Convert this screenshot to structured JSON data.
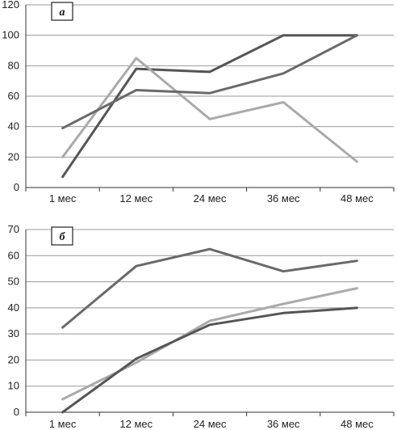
{
  "chart_data": [
    {
      "type": "line",
      "label": "а",
      "categories": [
        "1 мес",
        "12 мес",
        "24 мес",
        "36 мес",
        "48 мес"
      ],
      "ylim": [
        0,
        120
      ],
      "yticks": [
        0,
        20,
        40,
        60,
        80,
        100,
        120
      ],
      "grid": true,
      "series": [
        {
          "color": "#555555",
          "values": [
            7,
            78,
            76,
            100,
            100
          ]
        },
        {
          "color": "#aaaaaa",
          "values": [
            20,
            85,
            45,
            56,
            17
          ]
        },
        {
          "color": "#6a6a6a",
          "values": [
            39,
            64,
            62,
            75,
            100
          ]
        }
      ]
    },
    {
      "type": "line",
      "label": "б",
      "categories": [
        "1 мес",
        "12 мес",
        "24 мес",
        "36 мес",
        "48 мес"
      ],
      "ylim": [
        0,
        70
      ],
      "yticks": [
        0,
        10,
        20,
        30,
        40,
        50,
        60,
        70
      ],
      "grid": true,
      "series": [
        {
          "color": "#6a6a6a",
          "values": [
            32.5,
            56,
            62.5,
            54,
            58
          ]
        },
        {
          "color": "#aaaaaa",
          "values": [
            5,
            19,
            35,
            41.5,
            47.5
          ]
        },
        {
          "color": "#555555",
          "values": [
            0,
            20.5,
            33.5,
            38,
            40
          ]
        }
      ]
    }
  ]
}
